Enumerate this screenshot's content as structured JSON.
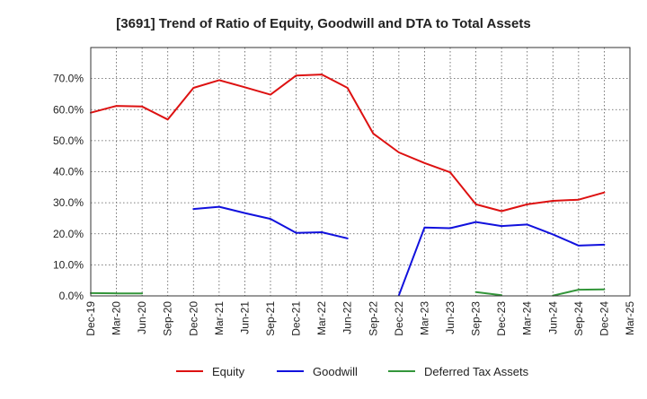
{
  "chart_data": {
    "type": "line",
    "title": "[3691]  Trend of Ratio of Equity, Goodwill and DTA to Total Assets",
    "categories": [
      "Dec-19",
      "Mar-20",
      "Jun-20",
      "Sep-20",
      "Dec-20",
      "Mar-21",
      "Jun-21",
      "Sep-21",
      "Dec-21",
      "Mar-22",
      "Jun-22",
      "Sep-22",
      "Dec-22",
      "Mar-23",
      "Jun-23",
      "Sep-23",
      "Dec-23",
      "Mar-24",
      "Jun-24",
      "Sep-24",
      "Dec-24",
      "Mar-25"
    ],
    "y_ticks": [
      "0.0%",
      "10.0%",
      "20.0%",
      "30.0%",
      "40.0%",
      "50.0%",
      "60.0%",
      "70.0%"
    ],
    "ylim": [
      0,
      80
    ],
    "grid": true,
    "legend_position": "bottom",
    "series": [
      {
        "name": "Equity",
        "color": "#dd1111",
        "values": [
          59.0,
          61.2,
          61.0,
          56.8,
          67.0,
          69.5,
          67.2,
          64.8,
          71.0,
          71.3,
          67.0,
          52.3,
          46.2,
          42.8,
          39.8,
          29.5,
          27.3,
          29.5,
          30.6,
          31.0,
          33.3,
          null
        ]
      },
      {
        "name": "Goodwill",
        "color": "#1111dd",
        "values": [
          null,
          null,
          null,
          null,
          28.0,
          28.7,
          26.7,
          24.8,
          20.3,
          20.5,
          18.5,
          null,
          0.2,
          22.0,
          21.8,
          23.8,
          22.5,
          23.0,
          19.8,
          16.2,
          16.5,
          null
        ]
      },
      {
        "name": "Deferred Tax Assets",
        "color": "#33963a",
        "values": [
          0.9,
          0.8,
          0.8,
          null,
          null,
          null,
          null,
          null,
          null,
          null,
          null,
          null,
          null,
          null,
          null,
          1.2,
          0.2,
          null,
          0.1,
          2.0,
          2.1,
          null
        ]
      }
    ]
  }
}
